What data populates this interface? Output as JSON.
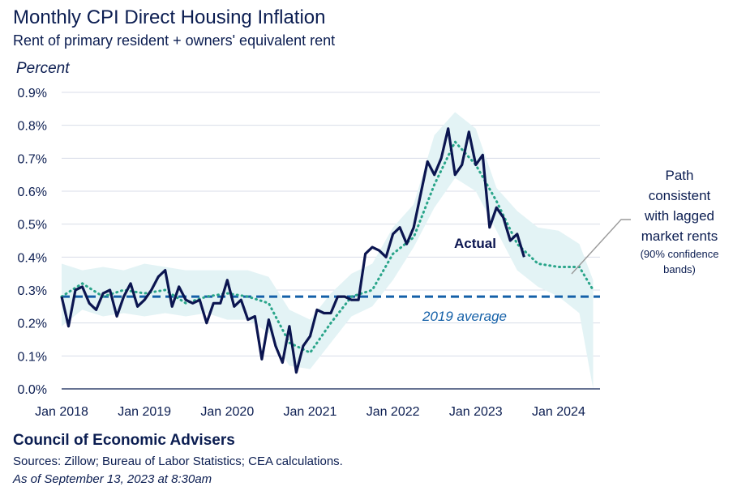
{
  "title": "Monthly CPI Direct Housing Inflation",
  "subtitle": "Rent of primary resident + owners' equivalent rent",
  "footer": {
    "org": "Council of Economic Advisers",
    "sources": "Sources: Zillow; Bureau of Labor Statistics; CEA calculations.",
    "date": "As of September 13, 2023 at 8:30am"
  },
  "colors": {
    "actual": "#0b1550",
    "path": "#2aa58a",
    "band": "#e3f3f5",
    "average": "#1460a8",
    "grid": "#d8dde8"
  },
  "chart_data": {
    "type": "line",
    "ylabel": "Percent",
    "ylim": [
      0,
      0.9
    ],
    "yticks": [
      "0.0%",
      "0.1%",
      "0.2%",
      "0.3%",
      "0.4%",
      "0.5%",
      "0.6%",
      "0.7%",
      "0.8%",
      "0.9%"
    ],
    "xticks": [
      "Jan 2018",
      "Jan 2019",
      "Jan 2020",
      "Jan 2021",
      "Jan 2022",
      "Jan 2023",
      "Jan 2024"
    ],
    "grid": true,
    "reference_line": {
      "label": "2019 average",
      "value": 0.28
    },
    "annotations": {
      "actual_label": "Actual",
      "path_label": [
        "Path",
        "consistent",
        "with lagged",
        "market rents"
      ],
      "band_label": [
        "(90% confidence",
        "bands)"
      ]
    },
    "series": [
      {
        "name": "Actual",
        "x": [
          "2018-01",
          "2018-02",
          "2018-03",
          "2018-04",
          "2018-05",
          "2018-06",
          "2018-07",
          "2018-08",
          "2018-09",
          "2018-10",
          "2018-11",
          "2018-12",
          "2019-01",
          "2019-02",
          "2019-03",
          "2019-04",
          "2019-05",
          "2019-06",
          "2019-07",
          "2019-08",
          "2019-09",
          "2019-10",
          "2019-11",
          "2019-12",
          "2020-01",
          "2020-02",
          "2020-03",
          "2020-04",
          "2020-05",
          "2020-06",
          "2020-07",
          "2020-08",
          "2020-09",
          "2020-10",
          "2020-11",
          "2020-12",
          "2021-01",
          "2021-02",
          "2021-03",
          "2021-04",
          "2021-05",
          "2021-06",
          "2021-07",
          "2021-08",
          "2021-09",
          "2021-10",
          "2021-11",
          "2021-12",
          "2022-01",
          "2022-02",
          "2022-03",
          "2022-04",
          "2022-05",
          "2022-06",
          "2022-07",
          "2022-08",
          "2022-09",
          "2022-10",
          "2022-11",
          "2022-12",
          "2023-01",
          "2023-02",
          "2023-03",
          "2023-04",
          "2023-05",
          "2023-06",
          "2023-07",
          "2023-08"
        ],
        "values": [
          0.28,
          0.19,
          0.3,
          0.31,
          0.26,
          0.24,
          0.29,
          0.3,
          0.22,
          0.28,
          0.32,
          0.25,
          0.27,
          0.3,
          0.34,
          0.36,
          0.25,
          0.31,
          0.27,
          0.26,
          0.27,
          0.2,
          0.26,
          0.26,
          0.33,
          0.25,
          0.27,
          0.21,
          0.22,
          0.09,
          0.21,
          0.13,
          0.08,
          0.19,
          0.05,
          0.13,
          0.16,
          0.24,
          0.23,
          0.23,
          0.28,
          0.28,
          0.27,
          0.27,
          0.41,
          0.43,
          0.42,
          0.4,
          0.47,
          0.49,
          0.44,
          0.49,
          0.59,
          0.69,
          0.65,
          0.7,
          0.79,
          0.65,
          0.68,
          0.78,
          0.68,
          0.71,
          0.49,
          0.55,
          0.52,
          0.45,
          0.47,
          0.4
        ]
      },
      {
        "name": "Path consistent with lagged market rents",
        "x": [
          "2018-01",
          "2018-04",
          "2018-07",
          "2018-10",
          "2019-01",
          "2019-04",
          "2019-07",
          "2019-10",
          "2020-01",
          "2020-04",
          "2020-07",
          "2020-10",
          "2021-01",
          "2021-04",
          "2021-07",
          "2021-10",
          "2022-01",
          "2022-04",
          "2022-07",
          "2022-10",
          "2023-01",
          "2023-04",
          "2023-07",
          "2023-10",
          "2024-01",
          "2024-04",
          "2024-06"
        ],
        "values": [
          0.28,
          0.32,
          0.28,
          0.3,
          0.29,
          0.3,
          0.26,
          0.28,
          0.29,
          0.28,
          0.26,
          0.14,
          0.11,
          0.2,
          0.28,
          0.3,
          0.41,
          0.46,
          0.62,
          0.75,
          0.68,
          0.57,
          0.44,
          0.38,
          0.37,
          0.37,
          0.3
        ]
      }
    ],
    "band": {
      "name": "90% confidence bands",
      "x": [
        "2018-01",
        "2018-04",
        "2018-07",
        "2018-10",
        "2019-01",
        "2019-04",
        "2019-07",
        "2019-10",
        "2020-01",
        "2020-04",
        "2020-07",
        "2020-10",
        "2021-01",
        "2021-04",
        "2021-07",
        "2021-10",
        "2022-01",
        "2022-04",
        "2022-07",
        "2022-10",
        "2023-01",
        "2023-04",
        "2023-07",
        "2023-10",
        "2024-01",
        "2024-04",
        "2024-06"
      ],
      "upper": [
        0.38,
        0.36,
        0.37,
        0.36,
        0.38,
        0.37,
        0.36,
        0.36,
        0.36,
        0.36,
        0.34,
        0.24,
        0.21,
        0.29,
        0.35,
        0.38,
        0.49,
        0.56,
        0.77,
        0.84,
        0.79,
        0.61,
        0.54,
        0.49,
        0.48,
        0.44,
        0.33
      ],
      "lower": [
        0.19,
        0.24,
        0.22,
        0.23,
        0.22,
        0.23,
        0.22,
        0.23,
        0.21,
        0.21,
        0.17,
        0.07,
        0.06,
        0.14,
        0.22,
        0.25,
        0.33,
        0.43,
        0.55,
        0.64,
        0.6,
        0.48,
        0.36,
        0.31,
        0.28,
        0.23,
        0.0
      ]
    }
  }
}
